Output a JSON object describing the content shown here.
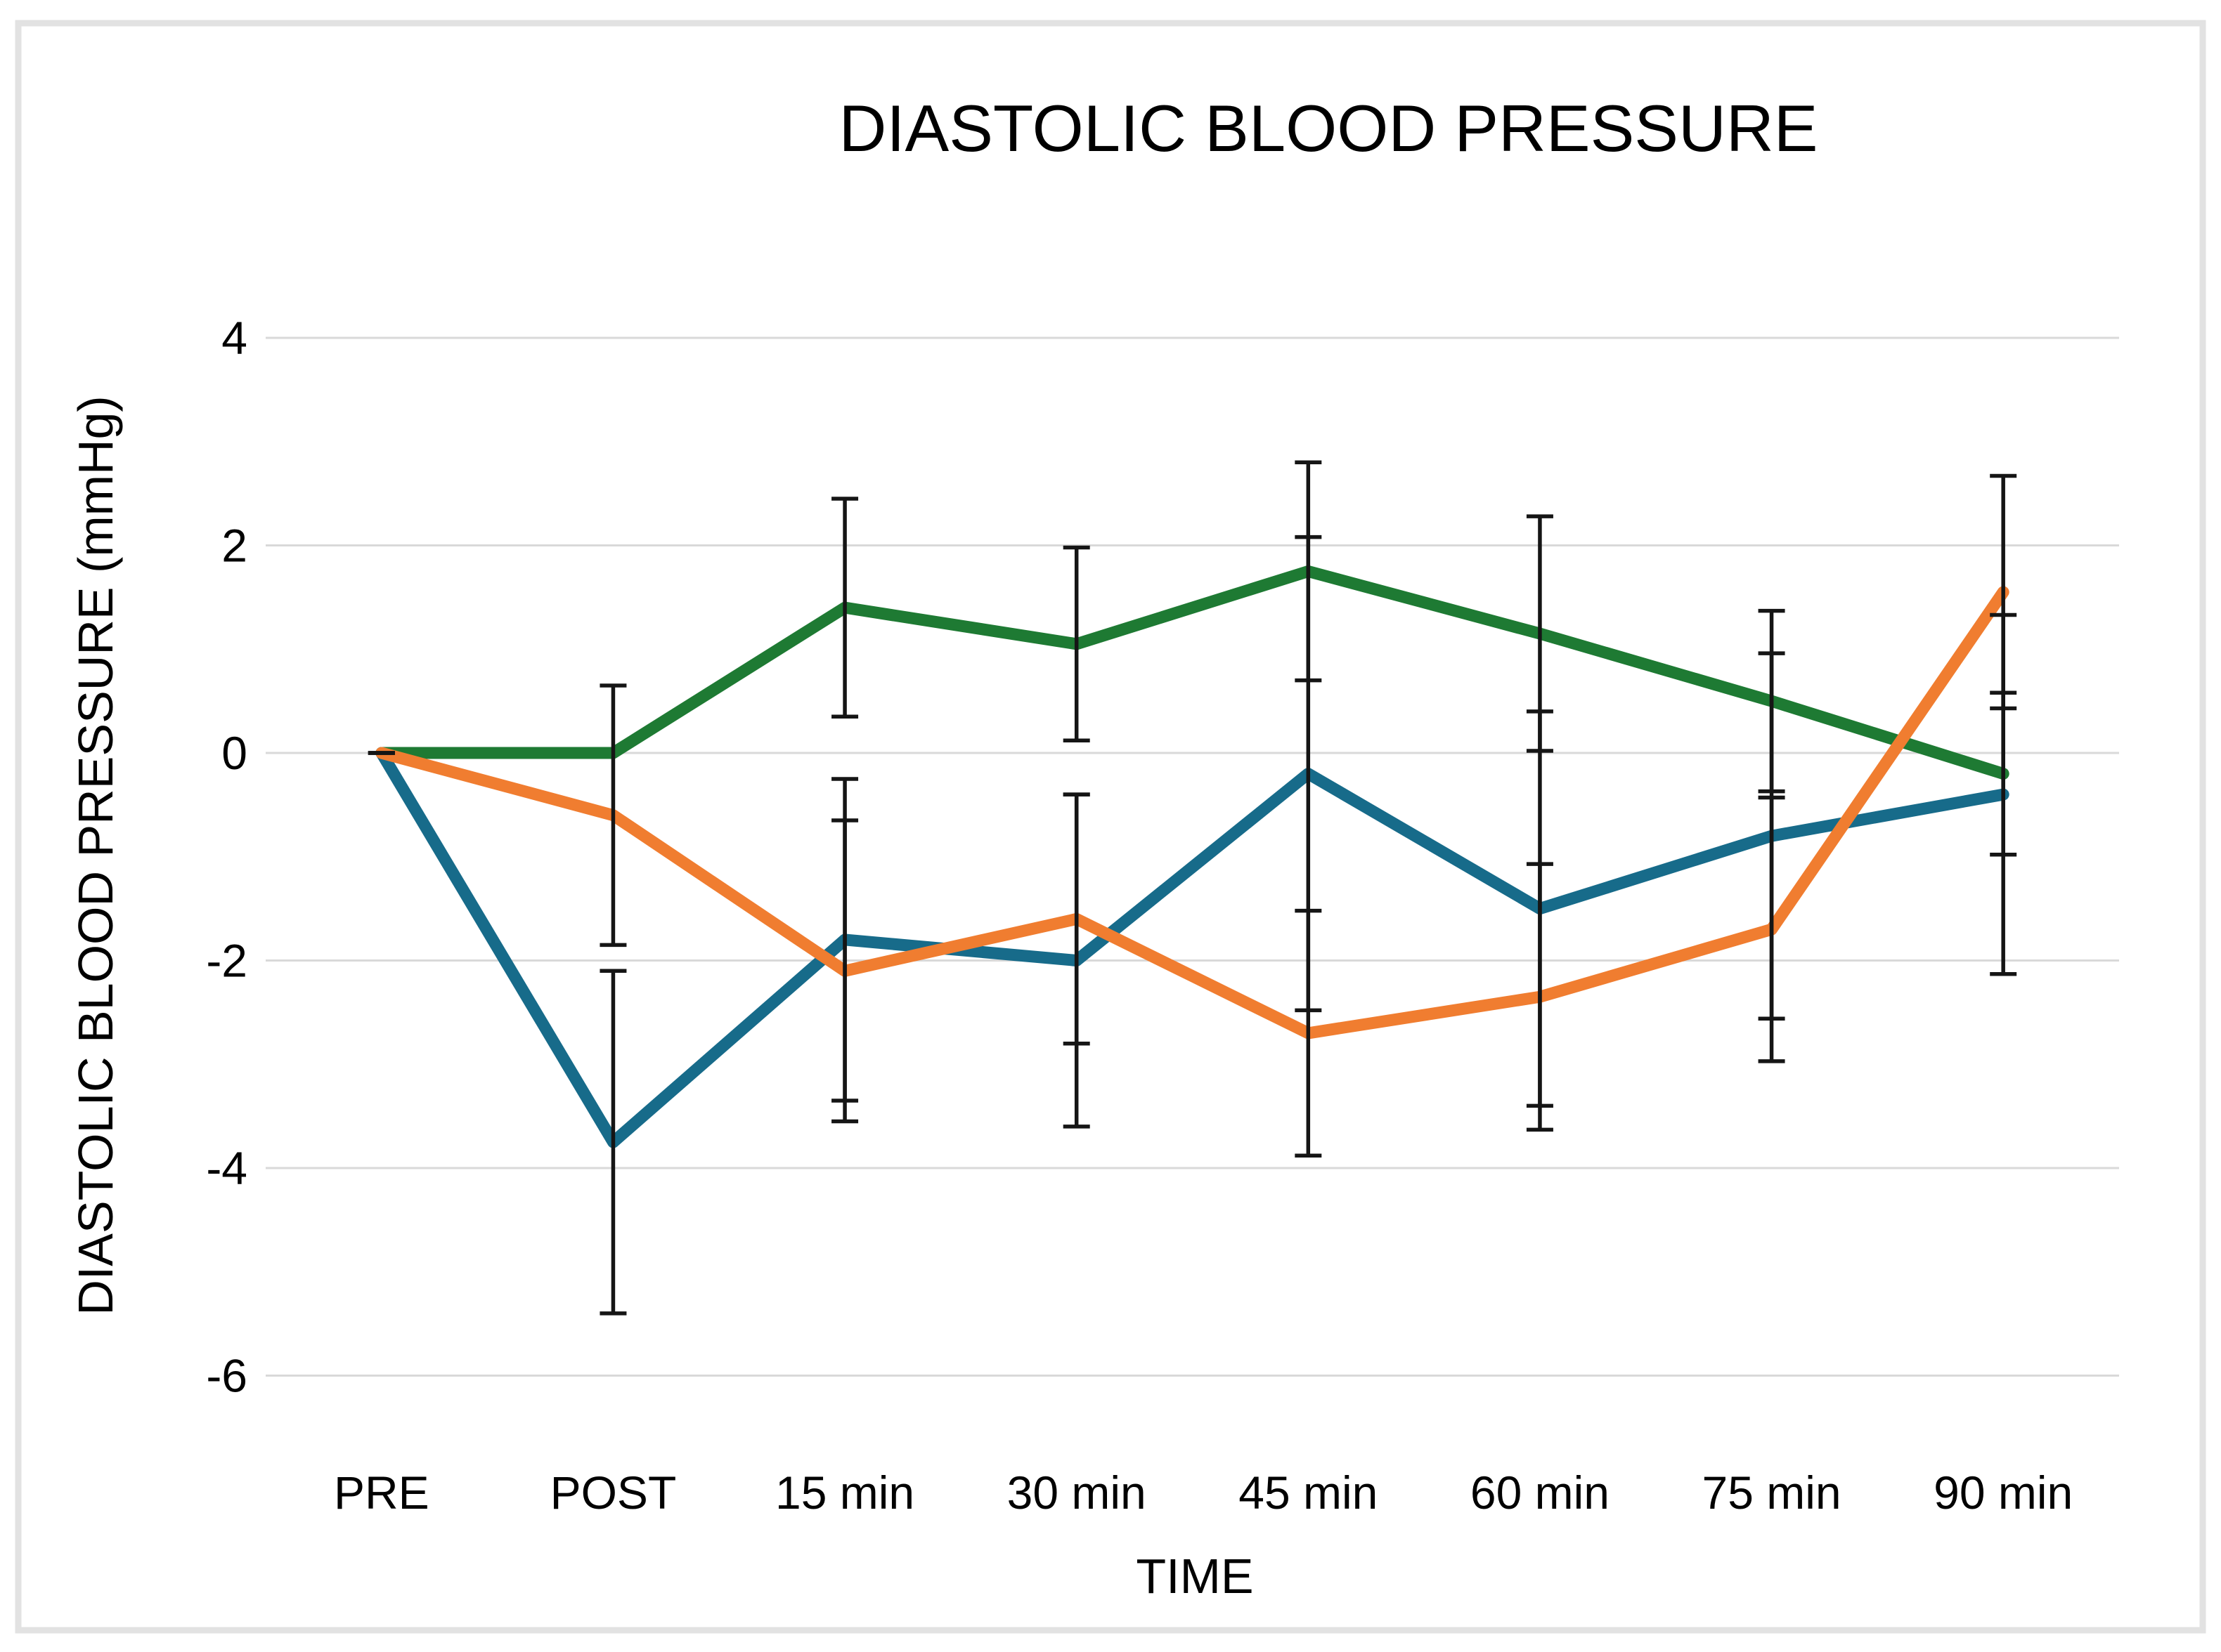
{
  "page": {
    "background": "#ffffff",
    "frame_border_color": "#e2e2e2"
  },
  "chart_data": {
    "type": "line",
    "title": "DIASTOLIC BLOOD PRESSURE",
    "xlabel": "TIME",
    "ylabel": "DIASTOLIC  BLOOD PRESSURE (mmHg)",
    "categories": [
      "PRE",
      "POST",
      "15 min",
      "30 min",
      "45 min",
      "60 min",
      "75 min",
      "90 min"
    ],
    "yticks": [
      4,
      2,
      0,
      -2,
      -4,
      -6
    ],
    "ylim": [
      -6.6,
      4.6
    ],
    "grid": true,
    "legend": "none",
    "error_bars": true,
    "grid_color": "#d9d9d9",
    "error_bar_color": "#151515",
    "series": [
      {
        "name": "green-series",
        "color": "#1e7a33",
        "values": [
          0,
          0,
          1.4,
          1.05,
          1.75,
          1.15,
          0.5,
          -0.2
        ],
        "errors": [
          0,
          null,
          1.05,
          0.93,
          1.05,
          1.13,
          0.87,
          0.78
        ]
      },
      {
        "name": "blue-series",
        "color": "#176b8a",
        "values": [
          0,
          -3.75,
          -1.8,
          -2.0,
          -0.2,
          -1.5,
          -0.8,
          -0.4
        ],
        "errors": [
          0,
          1.65,
          1.55,
          1.6,
          2.28,
          1.9,
          1.76,
          1.73
        ]
      },
      {
        "name": "orange-series",
        "color": "#f07d30",
        "values": [
          0,
          -0.6,
          -2.1,
          -1.6,
          -2.7,
          -2.35,
          -1.7,
          1.55
        ],
        "errors": [
          0,
          1.25,
          1.45,
          1.2,
          1.18,
          1.28,
          1.27,
          1.12
        ]
      }
    ]
  }
}
